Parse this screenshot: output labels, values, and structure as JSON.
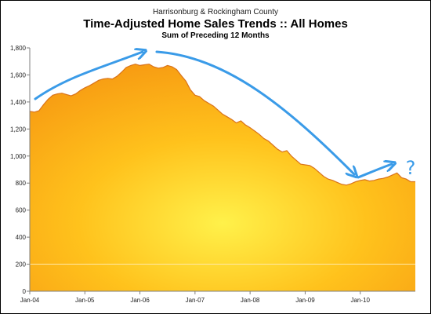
{
  "chart_data": {
    "type": "area",
    "title_top": "Harrisonburg & Rockingham County",
    "title": "Time-Adjusted Home Sales Trends  ::  All Homes",
    "subtitle": "Sum of Preceding 12 Months",
    "xlabel": "",
    "ylabel": "",
    "ylim": [
      0,
      1800
    ],
    "yticks": [
      0,
      200,
      400,
      600,
      800,
      1000,
      1200,
      1400,
      1600,
      1800
    ],
    "ytick_labels": [
      "0",
      "200",
      "400",
      "600",
      "800",
      "1,000",
      "1,200",
      "1,400",
      "1,600",
      "1,800"
    ],
    "xtick_labels": [
      "Jan-04",
      "Jan-05",
      "Jan-06",
      "Jan-07",
      "Jan-08",
      "Jan-09",
      "Jan-10"
    ],
    "x_start": "Jan-04",
    "x_end": "Dec-10",
    "grid": false,
    "colors": {
      "area": "#f8ac1a",
      "edge": "#d9731a",
      "annotation": "#3a9be8"
    },
    "series": [
      {
        "values": [
          1330,
          1325,
          1335,
          1380,
          1420,
          1450,
          1460,
          1465,
          1455,
          1445,
          1460,
          1485,
          1505,
          1520,
          1540,
          1560,
          1570,
          1575,
          1570,
          1590,
          1620,
          1655,
          1670,
          1680,
          1670,
          1675,
          1680,
          1660,
          1650,
          1655,
          1670,
          1660,
          1640,
          1595,
          1555,
          1490,
          1450,
          1440,
          1410,
          1390,
          1370,
          1340,
          1310,
          1290,
          1270,
          1245,
          1260,
          1230,
          1210,
          1185,
          1160,
          1130,
          1110,
          1080,
          1050,
          1030,
          1040,
          1000,
          970,
          940,
          935,
          930,
          910,
          880,
          850,
          830,
          820,
          805,
          790,
          785,
          795,
          810,
          820,
          825,
          815,
          820,
          830,
          835,
          845,
          860,
          875,
          840,
          830,
          810
        ]
      }
    ],
    "annotation_question": "?"
  }
}
